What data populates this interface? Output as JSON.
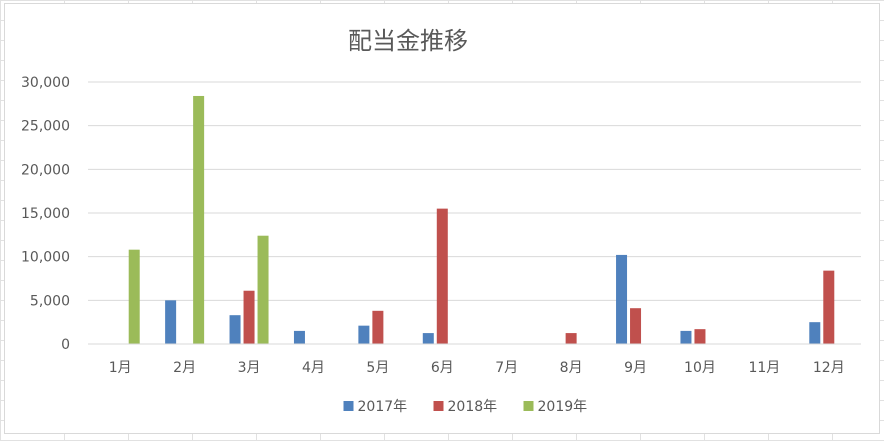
{
  "chart_data": {
    "type": "bar",
    "title": "配当金推移",
    "xlabel": "",
    "ylabel": "",
    "categories": [
      "1月",
      "2月",
      "3月",
      "4月",
      "5月",
      "6月",
      "7月",
      "8月",
      "9月",
      "10月",
      "11月",
      "12月"
    ],
    "y_ticks": [
      "0",
      "5,000",
      "10,000",
      "15,000",
      "20,000",
      "25,000",
      "30,000"
    ],
    "ylim": [
      0,
      30000
    ],
    "grid": true,
    "legend_position": "bottom",
    "series": [
      {
        "name": "2017年",
        "color": "#4f81bd",
        "values": [
          0,
          5000,
          3300,
          1500,
          2100,
          1250,
          0,
          0,
          10200,
          1500,
          0,
          2500
        ]
      },
      {
        "name": "2018年",
        "color": "#c0504d",
        "values": [
          0,
          0,
          6100,
          0,
          3800,
          15500,
          0,
          1250,
          4100,
          1700,
          0,
          8400
        ]
      },
      {
        "name": "2019年",
        "color": "#9bbb59",
        "values": [
          10800,
          28400,
          12400,
          0,
          0,
          0,
          0,
          0,
          0,
          0,
          0,
          0
        ]
      }
    ]
  }
}
